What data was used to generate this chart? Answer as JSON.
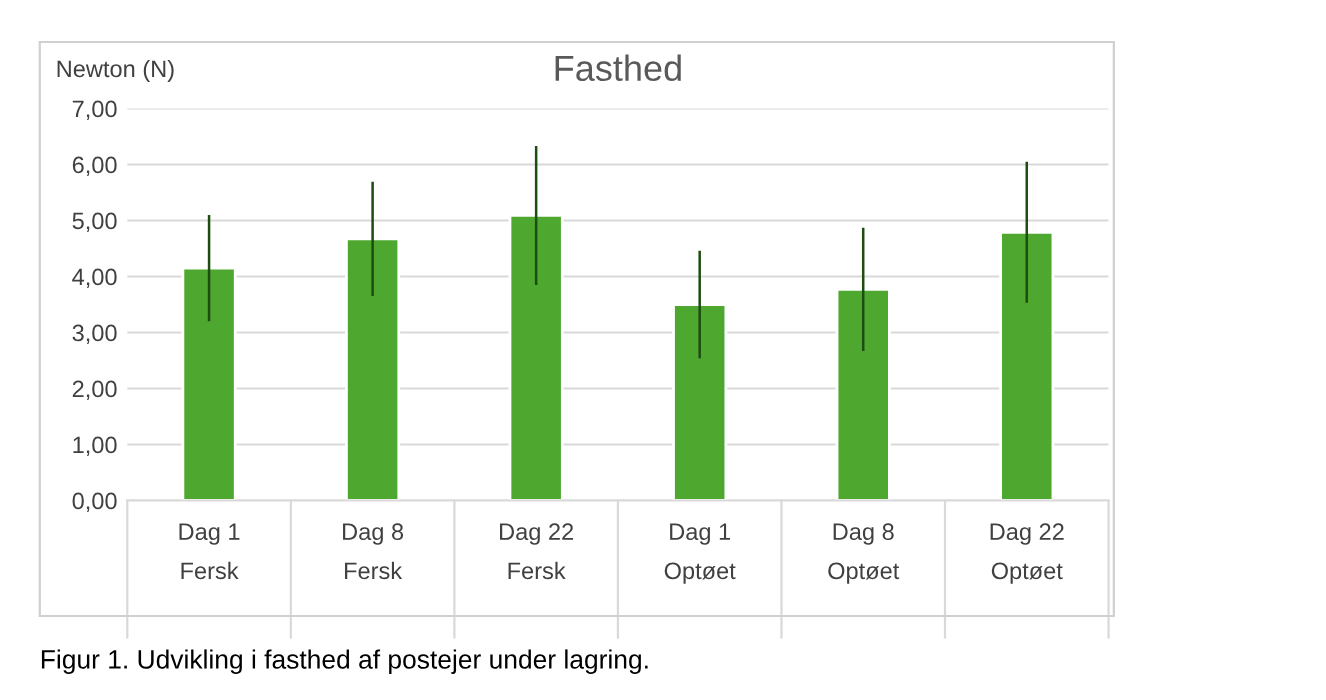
{
  "chart_data": {
    "type": "bar",
    "title": "Fasthed",
    "ylabel": "Newton (N)",
    "categories": [
      "Dag 1\nFersk",
      "Dag 8\nFersk",
      "Dag 22\nFersk",
      "Dag 1\nOptøet",
      "Dag 8\nOptøet",
      "Dag 22\nOptøet"
    ],
    "series": [
      {
        "color": "#4ea72e",
        "values": [
          4.15,
          4.67,
          5.09,
          3.5,
          3.77,
          4.79
        ],
        "errors": [
          0.95,
          1.02,
          1.24,
          0.96,
          1.1,
          1.26
        ]
      }
    ],
    "ylim": [
      0,
      7
    ],
    "yticks": [
      {
        "value": 0,
        "label": "0,00"
      },
      {
        "value": 1,
        "label": "1,00"
      },
      {
        "value": 2,
        "label": "2,00"
      },
      {
        "value": 3,
        "label": "3,00"
      },
      {
        "value": 4,
        "label": "4,00"
      },
      {
        "value": 5,
        "label": "5,00"
      },
      {
        "value": 6,
        "label": "6,00"
      },
      {
        "value": 7,
        "label": "7,00"
      }
    ],
    "grid": "y",
    "legend": false,
    "annotations": [
      "Figur 1. Udvikling i fasthed af postejer under lagring."
    ]
  }
}
